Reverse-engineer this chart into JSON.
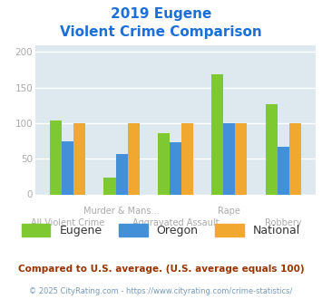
{
  "title_line1": "2019 Eugene",
  "title_line2": "Violent Crime Comparison",
  "title_color": "#1b6fd8",
  "categories_top": [
    "Murder & Mans...",
    "Rape"
  ],
  "categories_bottom": [
    "All Violent Crime",
    "Aggravated Assault",
    "Robbery"
  ],
  "categories_all": [
    "All Violent Crime",
    "Murder & Mans...",
    "Aggravated Assault",
    "Rape",
    "Robbery"
  ],
  "series": {
    "Eugene": [
      104,
      24,
      86,
      168,
      127
    ],
    "Oregon": [
      75,
      57,
      73,
      100,
      67
    ],
    "National": [
      100,
      100,
      100,
      100,
      100
    ]
  },
  "colors": {
    "Eugene": "#7ec832",
    "Oregon": "#4490d8",
    "National": "#f0a830"
  },
  "ylim": [
    0,
    210
  ],
  "yticks": [
    0,
    50,
    100,
    150,
    200
  ],
  "plot_bg": "#dde8ef",
  "fig_bg": "#ffffff",
  "footnote1": "Compared to U.S. average. (U.S. average equals 100)",
  "footnote2": "© 2025 CityRating.com - https://www.cityrating.com/crime-statistics/",
  "footnote1_color": "#993300",
  "footnote2_color": "#7799bb",
  "bar_width": 0.22,
  "tick_label_color": "#aaaaaa",
  "grid_color": "#ffffff",
  "legend_fontsize": 9,
  "cat_fontsize": 7.0
}
